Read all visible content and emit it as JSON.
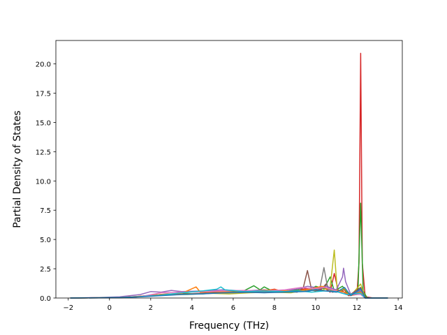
{
  "chart_data": {
    "type": "line",
    "title": "",
    "xlabel": "Frequency (THz)",
    "ylabel": "Partial Density of States",
    "xlim": [
      -2.6,
      14.2
    ],
    "ylim": [
      0,
      22.0
    ],
    "xticks": [
      -2,
      0,
      2,
      4,
      6,
      8,
      10,
      12,
      14
    ],
    "xtick_labels": [
      "−2",
      "0",
      "2",
      "4",
      "6",
      "8",
      "10",
      "12",
      "14"
    ],
    "yticks": [
      0,
      2.5,
      5,
      7.5,
      10,
      12.5,
      15,
      17.5,
      20
    ],
    "ytick_labels": [
      "0.0",
      "2.5",
      "5.0",
      "7.5",
      "10.0",
      "12.5",
      "15.0",
      "17.5",
      "20.0"
    ],
    "grid": false,
    "legend": "none",
    "series": [
      {
        "color": "#d62728",
        "points": [
          [
            -1.9,
            0
          ],
          [
            0.5,
            0.05
          ],
          [
            1.5,
            0.15
          ],
          [
            2.5,
            0.3
          ],
          [
            3.5,
            0.35
          ],
          [
            4.5,
            0.4
          ],
          [
            5.5,
            0.45
          ],
          [
            6.5,
            0.55
          ],
          [
            7.4,
            0.6
          ],
          [
            8.0,
            0.75
          ],
          [
            8.5,
            0.5
          ],
          [
            9.0,
            0.6
          ],
          [
            9.5,
            0.8
          ],
          [
            10.0,
            0.6
          ],
          [
            10.4,
            0.9
          ],
          [
            10.7,
            0.5
          ],
          [
            10.9,
            2.1
          ],
          [
            11.1,
            0.6
          ],
          [
            11.4,
            0.7
          ],
          [
            11.6,
            0.2
          ],
          [
            12.0,
            0.3
          ],
          [
            12.1,
            3.0
          ],
          [
            12.18,
            20.9
          ],
          [
            12.26,
            3.0
          ],
          [
            12.4,
            0.1
          ],
          [
            12.8,
            0
          ],
          [
            13.5,
            0
          ]
        ]
      },
      {
        "color": "#2ca02c",
        "points": [
          [
            -1.9,
            0
          ],
          [
            0.5,
            0.03
          ],
          [
            1.5,
            0.12
          ],
          [
            2.5,
            0.25
          ],
          [
            3.5,
            0.4
          ],
          [
            4.5,
            0.35
          ],
          [
            5.5,
            0.5
          ],
          [
            6.5,
            0.6
          ],
          [
            7.0,
            1.05
          ],
          [
            7.3,
            0.7
          ],
          [
            7.5,
            0.95
          ],
          [
            8.0,
            0.5
          ],
          [
            8.6,
            0.6
          ],
          [
            9.2,
            0.7
          ],
          [
            9.6,
            0.55
          ],
          [
            10.0,
            1.0
          ],
          [
            10.4,
            0.8
          ],
          [
            10.7,
            1.8
          ],
          [
            10.9,
            0.6
          ],
          [
            11.3,
            1.0
          ],
          [
            11.6,
            0.3
          ],
          [
            12.05,
            0.5
          ],
          [
            12.18,
            8.1
          ],
          [
            12.3,
            0.6
          ],
          [
            12.5,
            0
          ],
          [
            13.5,
            0
          ]
        ]
      },
      {
        "color": "#bcbd22",
        "points": [
          [
            -1.9,
            0
          ],
          [
            0.8,
            0.05
          ],
          [
            1.8,
            0.15
          ],
          [
            2.8,
            0.3
          ],
          [
            3.8,
            0.3
          ],
          [
            4.8,
            0.4
          ],
          [
            5.8,
            0.35
          ],
          [
            6.8,
            0.45
          ],
          [
            7.8,
            0.5
          ],
          [
            8.8,
            0.45
          ],
          [
            9.6,
            0.7
          ],
          [
            10.2,
            0.6
          ],
          [
            10.7,
            0.9
          ],
          [
            10.9,
            4.1
          ],
          [
            11.05,
            0.5
          ],
          [
            11.4,
            0.8
          ],
          [
            11.7,
            0.2
          ],
          [
            12.18,
            1.2
          ],
          [
            12.4,
            0
          ],
          [
            13.5,
            0
          ]
        ]
      },
      {
        "color": "#8c564b",
        "points": [
          [
            -1.9,
            0
          ],
          [
            0.8,
            0.04
          ],
          [
            1.8,
            0.2
          ],
          [
            2.8,
            0.35
          ],
          [
            3.8,
            0.35
          ],
          [
            4.8,
            0.45
          ],
          [
            5.8,
            0.5
          ],
          [
            6.8,
            0.55
          ],
          [
            7.6,
            0.5
          ],
          [
            8.4,
            0.6
          ],
          [
            9.1,
            0.5
          ],
          [
            9.4,
            0.9
          ],
          [
            9.6,
            2.35
          ],
          [
            9.8,
            0.7
          ],
          [
            10.2,
            0.6
          ],
          [
            10.5,
            1.2
          ],
          [
            10.8,
            0.5
          ],
          [
            11.3,
            0.6
          ],
          [
            11.6,
            0.2
          ],
          [
            12.18,
            0.9
          ],
          [
            12.4,
            0
          ],
          [
            13.5,
            0
          ]
        ]
      },
      {
        "color": "#7f7f7f",
        "points": [
          [
            -1.9,
            0
          ],
          [
            1.0,
            0.05
          ],
          [
            2.0,
            0.2
          ],
          [
            3.0,
            0.3
          ],
          [
            4.0,
            0.35
          ],
          [
            5.0,
            0.4
          ],
          [
            6.0,
            0.45
          ],
          [
            7.0,
            0.5
          ],
          [
            8.0,
            0.55
          ],
          [
            9.0,
            0.6
          ],
          [
            9.8,
            0.7
          ],
          [
            10.2,
            0.8
          ],
          [
            10.4,
            2.6
          ],
          [
            10.6,
            0.7
          ],
          [
            11.0,
            0.6
          ],
          [
            11.4,
            0.5
          ],
          [
            11.7,
            0.2
          ],
          [
            12.18,
            0.6
          ],
          [
            12.4,
            0
          ],
          [
            13.5,
            0
          ]
        ]
      },
      {
        "color": "#9467bd",
        "points": [
          [
            -1.9,
            0
          ],
          [
            -0.5,
            0.05
          ],
          [
            0.5,
            0.1
          ],
          [
            1.5,
            0.3
          ],
          [
            2.0,
            0.55
          ],
          [
            2.5,
            0.5
          ],
          [
            3.0,
            0.65
          ],
          [
            3.5,
            0.55
          ],
          [
            4.5,
            0.6
          ],
          [
            5.5,
            0.7
          ],
          [
            6.5,
            0.6
          ],
          [
            7.5,
            0.7
          ],
          [
            8.5,
            0.6
          ],
          [
            9.2,
            0.8
          ],
          [
            9.6,
            1.0
          ],
          [
            10.0,
            0.9
          ],
          [
            10.5,
            1.0
          ],
          [
            11.0,
            0.7
          ],
          [
            11.3,
            1.8
          ],
          [
            11.35,
            2.55
          ],
          [
            11.45,
            1.4
          ],
          [
            11.7,
            0.3
          ],
          [
            12.18,
            0.7
          ],
          [
            12.4,
            0
          ],
          [
            13.5,
            0
          ]
        ]
      },
      {
        "color": "#ff7f0e",
        "points": [
          [
            -1.9,
            0
          ],
          [
            0.5,
            0.04
          ],
          [
            1.5,
            0.15
          ],
          [
            2.5,
            0.3
          ],
          [
            3.5,
            0.4
          ],
          [
            4.2,
            0.95
          ],
          [
            4.4,
            0.5
          ],
          [
            5.0,
            0.55
          ],
          [
            6.0,
            0.5
          ],
          [
            7.0,
            0.6
          ],
          [
            8.0,
            0.7
          ],
          [
            9.0,
            0.55
          ],
          [
            9.8,
            0.8
          ],
          [
            10.3,
            1.0
          ],
          [
            10.8,
            0.7
          ],
          [
            11.4,
            0.5
          ],
          [
            11.7,
            0.2
          ],
          [
            12.18,
            0.5
          ],
          [
            12.4,
            0
          ],
          [
            13.5,
            0
          ]
        ]
      },
      {
        "color": "#e377c2",
        "points": [
          [
            -1.9,
            0
          ],
          [
            0.5,
            0.03
          ],
          [
            1.5,
            0.12
          ],
          [
            2.5,
            0.45
          ],
          [
            3.5,
            0.5
          ],
          [
            4.5,
            0.55
          ],
          [
            5.5,
            0.6
          ],
          [
            6.5,
            0.65
          ],
          [
            7.5,
            0.6
          ],
          [
            8.5,
            0.7
          ],
          [
            9.3,
            0.9
          ],
          [
            9.9,
            0.8
          ],
          [
            10.5,
            0.9
          ],
          [
            11.0,
            0.6
          ],
          [
            11.5,
            0.3
          ],
          [
            12.18,
            0.3
          ],
          [
            12.4,
            0
          ],
          [
            13.5,
            0
          ]
        ]
      },
      {
        "color": "#17becf",
        "points": [
          [
            -1.9,
            0
          ],
          [
            0.5,
            0.04
          ],
          [
            1.5,
            0.12
          ],
          [
            2.5,
            0.25
          ],
          [
            3.5,
            0.45
          ],
          [
            4.5,
            0.6
          ],
          [
            5.2,
            0.75
          ],
          [
            5.4,
            0.95
          ],
          [
            5.6,
            0.7
          ],
          [
            6.5,
            0.55
          ],
          [
            7.5,
            0.6
          ],
          [
            8.5,
            0.55
          ],
          [
            9.2,
            0.6
          ],
          [
            9.8,
            0.5
          ],
          [
            10.4,
            0.6
          ],
          [
            11.0,
            0.55
          ],
          [
            11.5,
            0.3
          ],
          [
            12.18,
            0.4
          ],
          [
            12.4,
            0
          ],
          [
            13.5,
            0
          ]
        ]
      },
      {
        "color": "#1f77b4",
        "points": [
          [
            -1.9,
            0
          ],
          [
            0.5,
            0.03
          ],
          [
            1.5,
            0.1
          ],
          [
            2.5,
            0.2
          ],
          [
            3.5,
            0.3
          ],
          [
            4.5,
            0.35
          ],
          [
            5.5,
            0.45
          ],
          [
            6.5,
            0.5
          ],
          [
            7.5,
            0.45
          ],
          [
            8.5,
            0.5
          ],
          [
            9.5,
            0.55
          ],
          [
            10.0,
            0.7
          ],
          [
            10.5,
            0.6
          ],
          [
            11.0,
            0.5
          ],
          [
            11.4,
            0.9
          ],
          [
            11.7,
            0.2
          ],
          [
            12.18,
            0.8
          ],
          [
            12.4,
            0
          ],
          [
            13.5,
            0
          ]
        ]
      }
    ]
  }
}
